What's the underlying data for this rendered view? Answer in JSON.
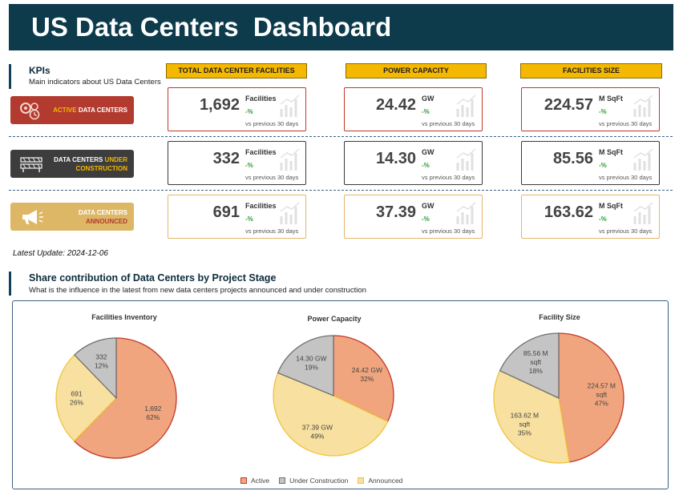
{
  "header": {
    "title": "US Data Centers  Dashboard"
  },
  "kpis": {
    "title": "KPIs",
    "subtitle": "Main indicators about US Data Centers",
    "columns": [
      "TOTAL DATA CENTER FACILITIES",
      "POWER CAPACITY",
      "FACILITIES SIZE"
    ],
    "rows": [
      {
        "badge_highlight": "ACTIVE",
        "badge_rest": " DATA CENTERS",
        "badge_color": "#b23a2e",
        "cards": [
          {
            "value": "1,692",
            "unit": "Facilities",
            "pct": "-%",
            "cmp": "vs previous 30 days"
          },
          {
            "value": "24.42",
            "unit": "GW",
            "pct": "-%",
            "cmp": "vs previous 30 days"
          },
          {
            "value": "224.57",
            "unit": "M SqFt",
            "pct": "-%",
            "cmp": "vs previous 30 days"
          }
        ]
      },
      {
        "badge_line1": "DATA CENTERS ",
        "badge_highlight": "UNDER",
        "badge_line2": "CONSTRUCTION",
        "badge_color": "#3d3d3d",
        "cards": [
          {
            "value": "332",
            "unit": "Facilities",
            "pct": "-%",
            "cmp": "vs previous 30 days"
          },
          {
            "value": "14.30",
            "unit": "GW",
            "pct": "-%",
            "cmp": "vs previous 30 days"
          },
          {
            "value": "85.56",
            "unit": "M SqFt",
            "pct": "-%",
            "cmp": "vs previous 30 days"
          }
        ]
      },
      {
        "badge_line1": "DATA CENTERS",
        "badge_line2": "ANNOUNCED",
        "badge_color": "#ddb766",
        "cards": [
          {
            "value": "691",
            "unit": "Facilities",
            "pct": "-%",
            "cmp": "vs previous 30 days"
          },
          {
            "value": "37.39",
            "unit": "GW",
            "pct": "-%",
            "cmp": "vs previous 30 days"
          },
          {
            "value": "163.62",
            "unit": "M SqFt",
            "pct": "-%",
            "cmp": "vs previous 30 days"
          }
        ]
      }
    ]
  },
  "latest_update": "Latest Update: 2024-12-06",
  "share": {
    "title": "Share contribution of Data Centers by Project Stage",
    "subtitle": "What is the influence in the latest from new data centers projects announced and under construction"
  },
  "colors": {
    "active": "#f0a57e",
    "under": "#c4c4c4",
    "announced": "#f7e0a0",
    "active_border": "#c0392b",
    "under_border": "#707070",
    "announced_border": "#f0c43c"
  },
  "legend": [
    "Active",
    "Under Construction",
    "Announced"
  ],
  "chart_data": [
    {
      "type": "pie",
      "title": "Facilities Inventory",
      "slices": [
        {
          "name": "Active",
          "value": 1692,
          "label1": "1,692",
          "label2": "62%"
        },
        {
          "name": "Announced",
          "value": 691,
          "label1": "691",
          "label2": "26%"
        },
        {
          "name": "Under Construction",
          "value": 332,
          "label1": "332",
          "label2": "12%"
        }
      ]
    },
    {
      "type": "pie",
      "title": "Power Capacity",
      "slices": [
        {
          "name": "Active",
          "value": 24.42,
          "label1": "24.42 GW",
          "label2": "32%"
        },
        {
          "name": "Announced",
          "value": 37.39,
          "label1": "37.39 GW",
          "label2": "49%"
        },
        {
          "name": "Under Construction",
          "value": 14.3,
          "label1": "14.30 GW",
          "label2": "19%"
        }
      ]
    },
    {
      "type": "pie",
      "title": "Facility Size",
      "slices": [
        {
          "name": "Active",
          "value": 224.57,
          "label1": "224.57 M",
          "label2": "sqft",
          "label3": "47%"
        },
        {
          "name": "Announced",
          "value": 163.62,
          "label1": "163.62 M",
          "label2": "sqft",
          "label3": "35%"
        },
        {
          "name": "Under Construction",
          "value": 85.56,
          "label1": "85.56 M",
          "label2": "sqft",
          "label3": "18%"
        }
      ]
    }
  ]
}
